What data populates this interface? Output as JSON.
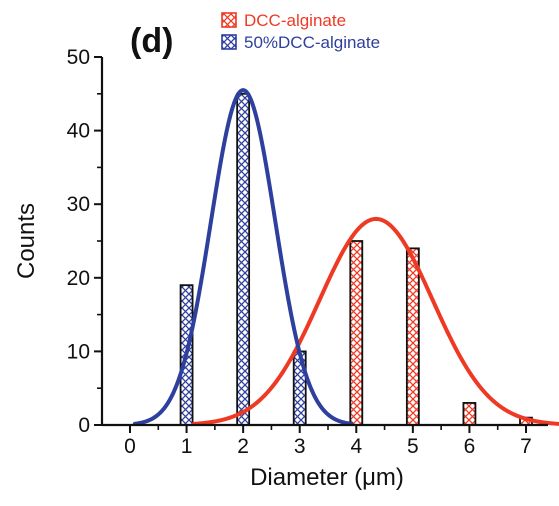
{
  "panel_label": "(d)",
  "colors": {
    "red": "#ee3a24",
    "blue": "#2e3f9e",
    "axis": "#111111"
  },
  "chart_data": {
    "type": "bar",
    "title": "",
    "xlabel": "Diameter (μm)",
    "ylabel": "Counts",
    "xlim": [
      -0.4,
      7.4
    ],
    "ylim": [
      0,
      50
    ],
    "xticks": [
      0,
      1,
      2,
      3,
      4,
      5,
      6,
      7
    ],
    "yticks": [
      0,
      10,
      20,
      30,
      40,
      50
    ],
    "legend_position": "top",
    "series": [
      {
        "name": "DCC-alginate",
        "color": "#ee3a24",
        "hatch": "cross",
        "bars": [
          {
            "x": 3,
            "value": 0
          },
          {
            "x": 4,
            "value": 25
          },
          {
            "x": 5,
            "value": 24
          },
          {
            "x": 6,
            "value": 3
          },
          {
            "x": 7,
            "value": 1
          }
        ],
        "fit": {
          "type": "gaussian",
          "amplitude": 28,
          "mean": 4.35,
          "sigma": 1.0
        }
      },
      {
        "name": "50%DCC-alginate",
        "color": "#2e3f9e",
        "hatch": "cross",
        "bars": [
          {
            "x": 1,
            "value": 19
          },
          {
            "x": 2,
            "value": 45
          },
          {
            "x": 3,
            "value": 10
          }
        ],
        "fit": {
          "type": "gaussian",
          "amplitude": 45.5,
          "mean": 2.0,
          "sigma": 0.57
        }
      }
    ]
  }
}
